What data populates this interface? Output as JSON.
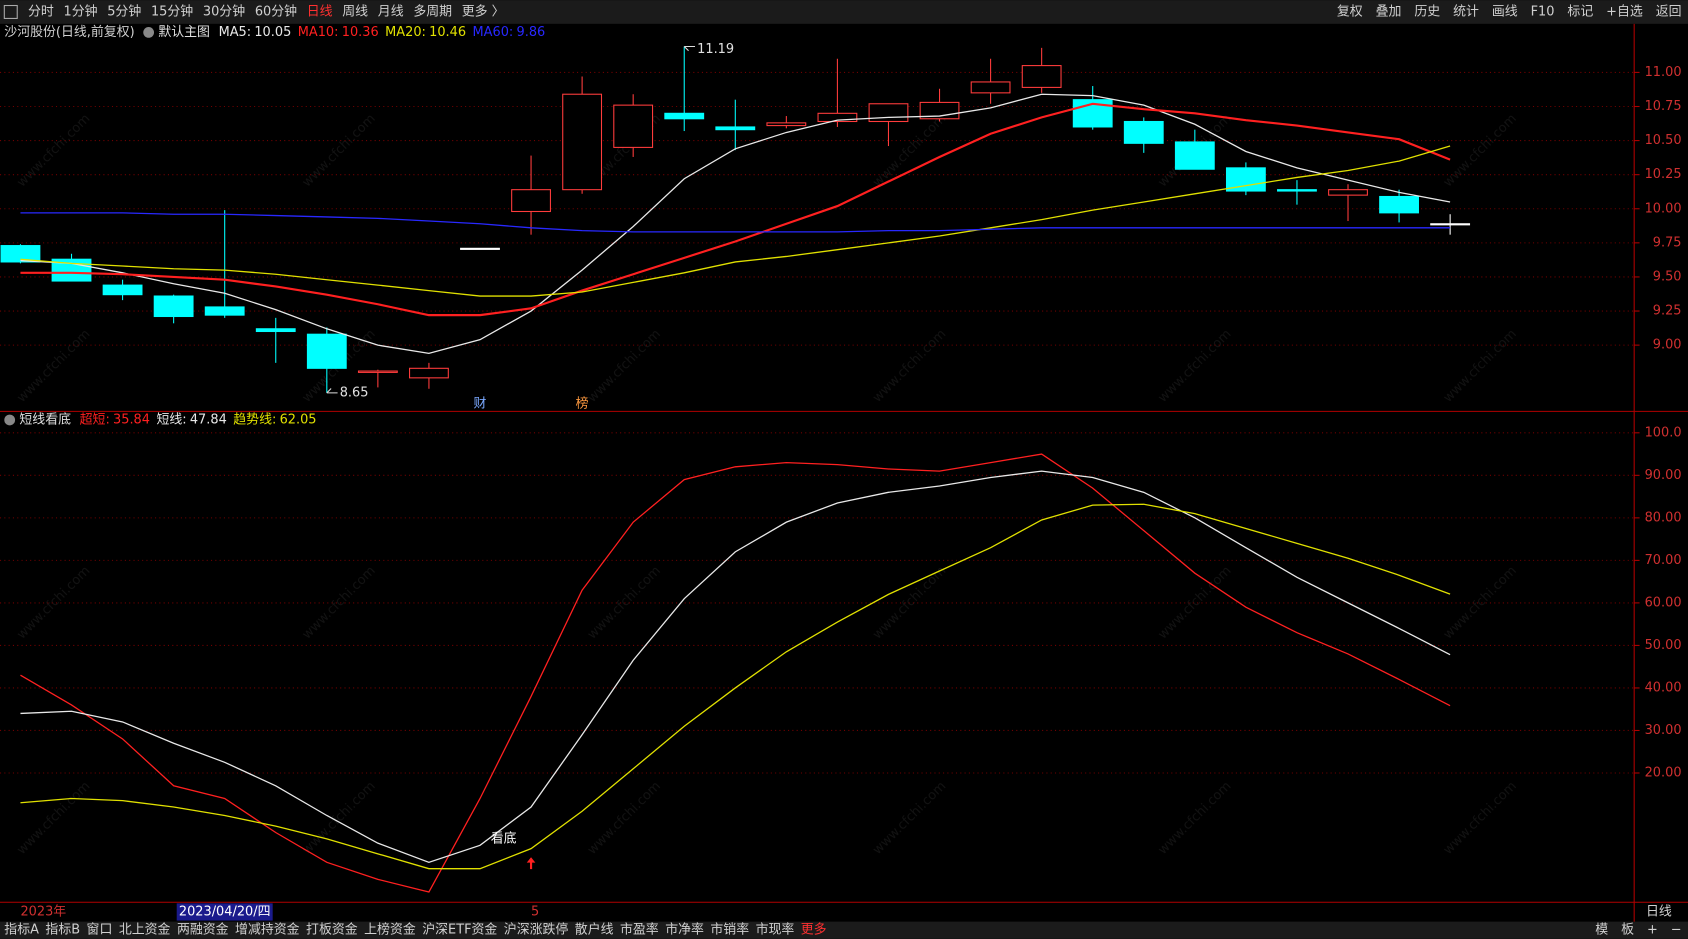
{
  "toolbar": {
    "items": [
      "分时",
      "1分钟",
      "5分钟",
      "15分钟",
      "30分钟",
      "60分钟",
      "日线",
      "周线",
      "月线",
      "多周期",
      "更多 〉"
    ],
    "active": 6,
    "right_items": [
      "复权",
      "叠加",
      "历史",
      "统计",
      "画线",
      "F10",
      "标记",
      "+自选",
      "返回"
    ]
  },
  "watermark": "www.cfchi.com",
  "period_label": "日线",
  "chart_data": [
    {
      "type": "candlestick",
      "title": "沙河股份(日线,前复权)",
      "subtitle": "默认主图",
      "categories": [
        "2023年",
        null,
        null,
        null,
        "2023/04/20/四",
        null,
        null,
        null,
        null,
        null,
        "5",
        null,
        null,
        null,
        null,
        null,
        null,
        null,
        null,
        null,
        null,
        null,
        null,
        null,
        null,
        null,
        null,
        null,
        null
      ],
      "selected_index": 4,
      "open": [
        9.73,
        9.63,
        9.44,
        9.36,
        9.28,
        9.12,
        9.08,
        8.8,
        8.76,
        9.71,
        9.98,
        10.14,
        10.45,
        10.7,
        10.6,
        10.61,
        10.64,
        10.64,
        10.66,
        10.85,
        10.89,
        10.8,
        10.64,
        10.49,
        10.3,
        10.14,
        10.1,
        10.09,
        9.89
      ],
      "high": [
        9.74,
        9.67,
        9.48,
        9.37,
        9.99,
        9.2,
        9.13,
        8.82,
        8.87,
        9.71,
        10.39,
        10.97,
        10.84,
        11.19,
        10.8,
        10.68,
        11.1,
        10.77,
        10.88,
        11.1,
        11.18,
        10.9,
        10.67,
        10.58,
        10.34,
        10.21,
        10.18,
        10.14,
        9.96
      ],
      "low": [
        9.6,
        9.47,
        9.33,
        9.16,
        9.2,
        8.87,
        8.65,
        8.69,
        8.68,
        9.71,
        9.81,
        10.11,
        10.38,
        10.57,
        10.43,
        10.59,
        10.6,
        10.46,
        10.64,
        10.77,
        10.85,
        10.58,
        10.41,
        10.29,
        10.1,
        10.03,
        9.91,
        9.9,
        9.81
      ],
      "close": [
        9.61,
        9.47,
        9.37,
        9.21,
        9.22,
        9.1,
        8.83,
        8.81,
        8.83,
        9.71,
        10.14,
        10.84,
        10.76,
        10.66,
        10.58,
        10.63,
        10.7,
        10.77,
        10.78,
        10.93,
        11.05,
        10.6,
        10.48,
        10.29,
        10.13,
        10.13,
        10.14,
        9.97,
        9.89
      ],
      "up_color": "#ff3c3c",
      "down_color": "#00ffff",
      "flat_color": "#ffffff",
      "series": [
        {
          "name": "MA5:",
          "color": "#e8e8e8",
          "values": [
            9.62,
            9.6,
            9.53,
            9.45,
            9.38,
            9.26,
            9.12,
            9.0,
            8.94,
            9.04,
            9.25,
            9.55,
            9.87,
            10.22,
            10.44,
            10.56,
            10.65,
            10.67,
            10.68,
            10.74,
            10.84,
            10.83,
            10.76,
            10.62,
            10.42,
            10.3,
            10.21,
            10.12,
            10.05
          ]
        },
        {
          "name": "MA10:",
          "color": "#ff2020",
          "values": [
            9.53,
            9.53,
            9.52,
            9.5,
            9.48,
            9.43,
            9.37,
            9.3,
            9.22,
            9.22,
            9.27,
            9.4,
            9.52,
            9.64,
            9.76,
            9.89,
            10.02,
            10.2,
            10.38,
            10.55,
            10.67,
            10.77,
            10.73,
            10.7,
            10.65,
            10.61,
            10.56,
            10.51,
            10.36
          ]
        },
        {
          "name": "MA20:",
          "color": "#e0e000",
          "values": [
            9.63,
            9.6,
            9.58,
            9.56,
            9.55,
            9.52,
            9.48,
            9.44,
            9.4,
            9.36,
            9.36,
            9.39,
            9.46,
            9.53,
            9.61,
            9.65,
            9.7,
            9.75,
            9.8,
            9.86,
            9.92,
            9.99,
            10.05,
            10.11,
            10.17,
            10.23,
            10.28,
            10.35,
            10.46
          ]
        },
        {
          "name": "MA60:",
          "color": "#2828ff",
          "values": [
            9.97,
            9.97,
            9.97,
            9.96,
            9.96,
            9.95,
            9.94,
            9.93,
            9.91,
            9.89,
            9.86,
            9.84,
            9.83,
            9.83,
            9.83,
            9.83,
            9.83,
            9.84,
            9.84,
            9.85,
            9.86,
            9.86,
            9.86,
            9.86,
            9.86,
            9.86,
            9.86,
            9.86,
            9.86
          ]
        }
      ],
      "ylim": [
        8.53,
        11.23
      ],
      "yticks": [
        {
          "value": 11,
          "label": "11.00"
        },
        {
          "value": 10.75,
          "label": "10.75"
        },
        {
          "value": 10.5,
          "label": "10.50"
        },
        {
          "value": 10.25,
          "label": "10.25"
        },
        {
          "value": 10,
          "label": "10.00"
        },
        {
          "value": 9.75,
          "label": "9.75"
        },
        {
          "value": 9.5,
          "label": "9.50"
        },
        {
          "value": 9.25,
          "label": "9.25"
        },
        {
          "value": 9,
          "label": "9.00"
        }
      ],
      "grid": true,
      "markers": [
        {
          "index": 9,
          "label": "财",
          "color": "#7aa8ff"
        },
        {
          "index": 11,
          "label": "榜",
          "color": "#ff9a40"
        }
      ]
    },
    {
      "type": "line",
      "title": "短线看底",
      "series": [
        {
          "name": "超短:",
          "color": "#ff2020",
          "values": [
            43,
            36,
            28,
            17,
            14,
            6,
            -1,
            -5,
            -8,
            14,
            38,
            63,
            79,
            89,
            92,
            93,
            92.5,
            91.5,
            91,
            93,
            95,
            87,
            77,
            67,
            59,
            53,
            48,
            42,
            35.84
          ]
        },
        {
          "name": "短线:",
          "color": "#e8e8e8",
          "values": [
            34,
            34.5,
            32,
            27,
            22.5,
            17,
            10,
            3.5,
            -1,
            3,
            12,
            29,
            46.5,
            61,
            72,
            79,
            83.5,
            86,
            87.5,
            89.5,
            91,
            89.5,
            86,
            80,
            73,
            66,
            60,
            54,
            47.84
          ]
        },
        {
          "name": "趋势线:",
          "color": "#e0e000",
          "values": [
            13,
            14,
            13.5,
            12,
            10,
            7.5,
            4.5,
            1,
            -2.5,
            -2.5,
            2.2,
            11,
            21,
            31,
            40,
            48.5,
            55.5,
            62,
            67.5,
            73,
            79.5,
            83,
            83.2,
            81,
            77.5,
            74,
            70.5,
            66.5,
            62.05
          ]
        }
      ],
      "ylim": [
        -10.4,
        101.5
      ],
      "yticks": [
        {
          "value": 100,
          "label": "100.0"
        },
        {
          "value": 90,
          "label": "90.00"
        },
        {
          "value": 80,
          "label": "80.00"
        },
        {
          "value": 70,
          "label": "70.00"
        },
        {
          "value": 60,
          "label": "60.00"
        },
        {
          "value": 50,
          "label": "50.00"
        },
        {
          "value": 40,
          "label": "40.00"
        },
        {
          "value": 30,
          "label": "30.00"
        },
        {
          "value": 20,
          "label": "20.00"
        }
      ],
      "grid": true,
      "signal": {
        "label": "看底",
        "index": 9,
        "arrow_index": 10,
        "arrow_color": "#ff2020"
      }
    }
  ],
  "bottom_tabs": {
    "items": [
      "指标A",
      "指标B",
      "窗口",
      "北上资金",
      "两融资金",
      "增减持资金",
      "打板资金",
      "上榜资金",
      "沪深ETF资金",
      "沪深涨跌停",
      "散户线",
      "市盈率",
      "市净率",
      "市销率",
      "市现率",
      "更多"
    ],
    "highlight": 15,
    "right_items": [
      "模",
      "板",
      "+",
      "−"
    ]
  }
}
